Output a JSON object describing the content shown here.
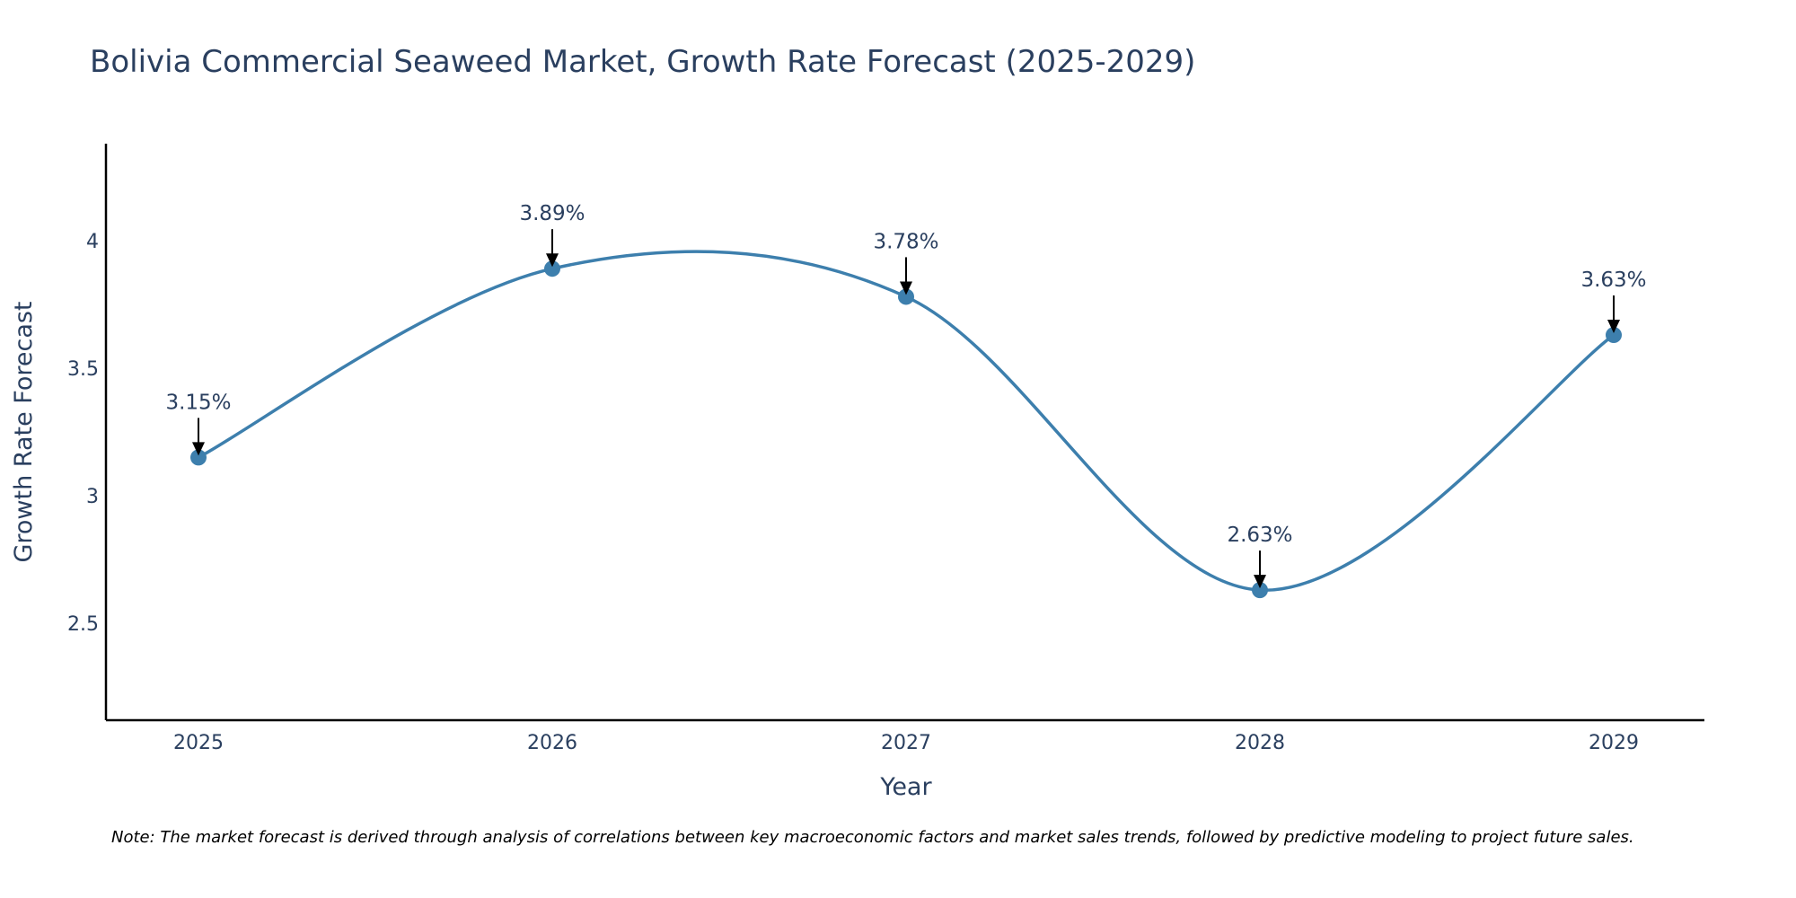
{
  "colors": {
    "line": "#3d7fad",
    "marker": "#3d7fad",
    "axis": "#000000",
    "text": "#2a3f5f",
    "arrow": "#000000"
  },
  "chart_data": {
    "type": "line",
    "title": "Bolivia Commercial Seaweed Market, Growth Rate Forecast (2025-2029)",
    "xlabel": "Year",
    "ylabel": "Growth Rate Forecast",
    "categories": [
      "2025",
      "2026",
      "2027",
      "2028",
      "2029"
    ],
    "series": [
      {
        "name": "Growth Rate Forecast",
        "values": [
          3.15,
          3.89,
          3.78,
          2.63,
          3.63
        ]
      }
    ],
    "data_labels": [
      "3.15%",
      "3.89%",
      "3.78%",
      "2.63%",
      "3.63%"
    ],
    "ylim": [
      2.12,
      4.38
    ],
    "yticks": [
      2.5,
      3,
      3.5,
      4
    ],
    "ytick_labels": [
      "2.5",
      "3",
      "3.5",
      "4"
    ],
    "line_shape": "spline",
    "grid": false
  },
  "note": "Note: The market forecast is derived through analysis of correlations between key macroeconomic factors and market sales trends, followed by predictive modeling to project future sales."
}
